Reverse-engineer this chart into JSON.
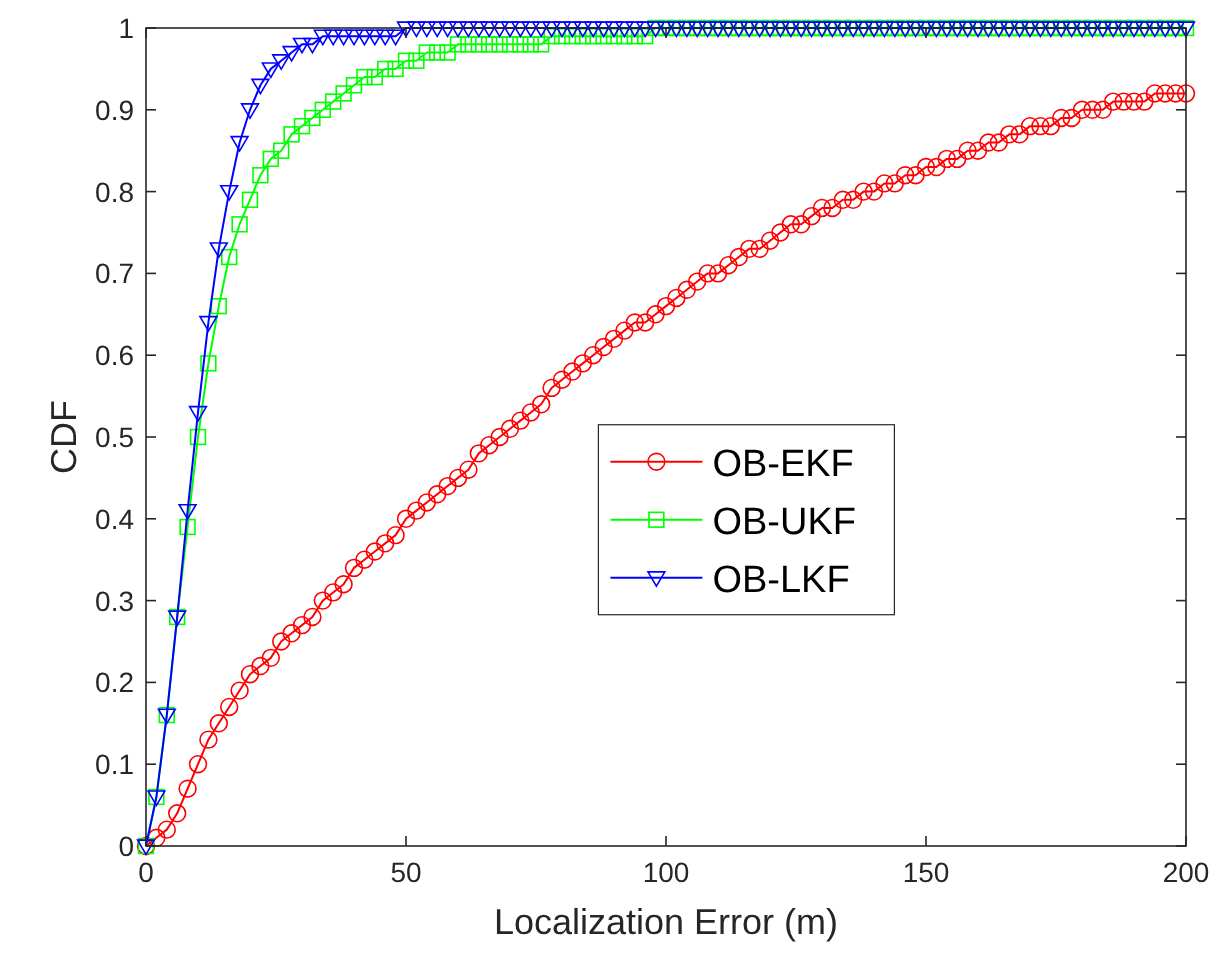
{
  "chart_data": {
    "type": "line",
    "xlabel": "Localization Error (m)",
    "ylabel": "CDF",
    "x": [
      0,
      2,
      4,
      6,
      8,
      10,
      12,
      14,
      16,
      18,
      20,
      22,
      24,
      26,
      28,
      30,
      32,
      34,
      36,
      38,
      40,
      42,
      44,
      46,
      48,
      50,
      52,
      54,
      56,
      58,
      60,
      62,
      64,
      66,
      68,
      70,
      72,
      74,
      76,
      78,
      80,
      82,
      84,
      86,
      88,
      90,
      92,
      94,
      96,
      98,
      100,
      102,
      104,
      106,
      108,
      110,
      112,
      114,
      116,
      118,
      120,
      122,
      124,
      126,
      128,
      130,
      132,
      134,
      136,
      138,
      140,
      142,
      144,
      146,
      148,
      150,
      152,
      154,
      156,
      158,
      160,
      162,
      164,
      166,
      168,
      170,
      172,
      174,
      176,
      178,
      180,
      182,
      184,
      186,
      188,
      190,
      192,
      194,
      196,
      198,
      200
    ],
    "series": [
      {
        "name": "OB-EKF",
        "color": "#ff0000",
        "marker": "circle",
        "values": [
          0,
          0.01,
          0.02,
          0.04,
          0.07,
          0.1,
          0.13,
          0.15,
          0.17,
          0.19,
          0.21,
          0.22,
          0.23,
          0.25,
          0.26,
          0.27,
          0.28,
          0.3,
          0.31,
          0.32,
          0.34,
          0.35,
          0.36,
          0.37,
          0.38,
          0.4,
          0.41,
          0.42,
          0.43,
          0.44,
          0.45,
          0.46,
          0.48,
          0.49,
          0.5,
          0.51,
          0.52,
          0.53,
          0.54,
          0.56,
          0.57,
          0.58,
          0.59,
          0.6,
          0.61,
          0.62,
          0.63,
          0.64,
          0.64,
          0.65,
          0.66,
          0.67,
          0.68,
          0.69,
          0.7,
          0.7,
          0.71,
          0.72,
          0.73,
          0.73,
          0.74,
          0.75,
          0.76,
          0.76,
          0.77,
          0.78,
          0.78,
          0.79,
          0.79,
          0.8,
          0.8,
          0.81,
          0.81,
          0.82,
          0.82,
          0.83,
          0.83,
          0.84,
          0.84,
          0.85,
          0.85,
          0.86,
          0.86,
          0.87,
          0.87,
          0.88,
          0.88,
          0.88,
          0.89,
          0.89,
          0.9,
          0.9,
          0.9,
          0.91,
          0.91,
          0.91,
          0.91,
          0.92,
          0.92,
          0.92,
          0.92
        ]
      },
      {
        "name": "OB-UKF",
        "color": "#00ff00",
        "marker": "square",
        "values": [
          0,
          0.06,
          0.16,
          0.28,
          0.39,
          0.5,
          0.59,
          0.66,
          0.72,
          0.76,
          0.79,
          0.82,
          0.84,
          0.85,
          0.87,
          0.88,
          0.89,
          0.9,
          0.91,
          0.92,
          0.93,
          0.94,
          0.94,
          0.95,
          0.95,
          0.96,
          0.96,
          0.97,
          0.97,
          0.97,
          0.98,
          0.98,
          0.98,
          0.98,
          0.98,
          0.98,
          0.98,
          0.98,
          0.98,
          0.99,
          0.99,
          0.99,
          0.99,
          0.99,
          0.99,
          0.99,
          0.99,
          0.99,
          0.99,
          1,
          1,
          1,
          1,
          1,
          1,
          1,
          1,
          1,
          1,
          1,
          1,
          1,
          1,
          1,
          1,
          1,
          1,
          1,
          1,
          1,
          1,
          1,
          1,
          1,
          1,
          1,
          1,
          1,
          1,
          1,
          1,
          1,
          1,
          1,
          1,
          1,
          1,
          1,
          1,
          1,
          1,
          1,
          1,
          1,
          1,
          1,
          1,
          1,
          1,
          1,
          1
        ]
      },
      {
        "name": "OB-LKF",
        "color": "#0000ff",
        "marker": "triangle",
        "values": [
          0,
          0.06,
          0.16,
          0.28,
          0.41,
          0.53,
          0.64,
          0.73,
          0.8,
          0.86,
          0.9,
          0.93,
          0.95,
          0.96,
          0.97,
          0.98,
          0.98,
          0.99,
          0.99,
          0.99,
          0.99,
          0.99,
          0.99,
          0.99,
          0.99,
          1,
          1,
          1,
          1,
          1,
          1,
          1,
          1,
          1,
          1,
          1,
          1,
          1,
          1,
          1,
          1,
          1,
          1,
          1,
          1,
          1,
          1,
          1,
          1,
          1,
          1,
          1,
          1,
          1,
          1,
          1,
          1,
          1,
          1,
          1,
          1,
          1,
          1,
          1,
          1,
          1,
          1,
          1,
          1,
          1,
          1,
          1,
          1,
          1,
          1,
          1,
          1,
          1,
          1,
          1,
          1,
          1,
          1,
          1,
          1,
          1,
          1,
          1,
          1,
          1,
          1,
          1,
          1,
          1,
          1,
          1,
          1,
          1,
          1,
          1,
          1
        ]
      }
    ],
    "xlim": [
      0,
      200
    ],
    "xticks": [
      0,
      50,
      100,
      150,
      200
    ],
    "ylim": [
      0,
      1
    ],
    "yticks": [
      0,
      0.1,
      0.2,
      0.3,
      0.4,
      0.5,
      0.6,
      0.7,
      0.8,
      0.9,
      1
    ],
    "grid": false,
    "legend": "center",
    "line_style": "solid"
  }
}
